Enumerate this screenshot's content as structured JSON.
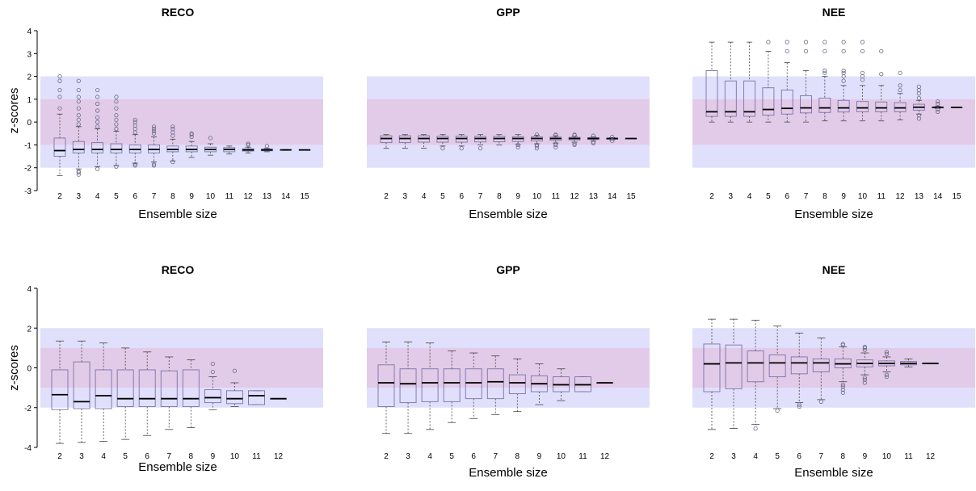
{
  "colors": {
    "outer_band": "#e0e0fc",
    "inner_band": "#e2cbe8",
    "box_stroke": "#7a72a8",
    "median": "#000000",
    "outlier": "#6a6a8a",
    "whisker": "#444444"
  },
  "bands": {
    "outer": [
      -2,
      2
    ],
    "inner": [
      -1,
      1
    ]
  },
  "chart_data": [
    {
      "type": "box",
      "title": "RECO",
      "xlabel": "Ensemble size",
      "ylabel": "z-scores",
      "ylim": [
        -3,
        4
      ],
      "yticks": [
        -3,
        -2,
        -1,
        0,
        1,
        2,
        3,
        4
      ],
      "show_yticks": true,
      "categories": [
        "2",
        "3",
        "4",
        "5",
        "6",
        "7",
        "8",
        "9",
        "10",
        "11",
        "12",
        "13",
        "14",
        "15"
      ],
      "boxes": [
        {
          "low": -2.35,
          "q1": -1.5,
          "med": -1.25,
          "q3": -0.7,
          "high": 0.35,
          "out": [
            0.6,
            1.1,
            1.4,
            1.8,
            2.0
          ]
        },
        {
          "low": -2.05,
          "q1": -1.35,
          "med": -1.2,
          "q3": -0.85,
          "high": -0.2,
          "out": [
            -2.3,
            -2.2,
            -2.15,
            -0.1,
            0.1,
            0.3,
            0.6,
            0.9,
            1.1,
            1.4,
            1.8
          ]
        },
        {
          "low": -1.95,
          "q1": -1.35,
          "med": -1.2,
          "q3": -0.9,
          "high": -0.3,
          "out": [
            -2.05,
            -0.2,
            0.0,
            0.2,
            0.5,
            0.8,
            1.1,
            1.4
          ]
        },
        {
          "low": -1.9,
          "q1": -1.35,
          "med": -1.2,
          "q3": -0.95,
          "high": -0.4,
          "out": [
            -1.95,
            -0.3,
            -0.1,
            0.1,
            0.3,
            0.6,
            0.9,
            1.1
          ]
        },
        {
          "low": -1.8,
          "q1": -1.35,
          "med": -1.2,
          "q3": -1.0,
          "high": -0.55,
          "out": [
            -1.9,
            -1.85,
            -0.45,
            -0.3,
            -0.15,
            0.0,
            0.1
          ]
        },
        {
          "low": -1.75,
          "q1": -1.35,
          "med": -1.2,
          "q3": -1.0,
          "high": -0.65,
          "out": [
            -1.9,
            -1.85,
            -0.5,
            -0.4,
            -0.3,
            -0.2
          ]
        },
        {
          "low": -1.7,
          "q1": -1.3,
          "med": -1.2,
          "q3": -1.05,
          "high": -0.75,
          "out": [
            -1.75,
            -0.6,
            -0.45,
            -0.3,
            -0.2
          ]
        },
        {
          "low": -1.55,
          "q1": -1.3,
          "med": -1.2,
          "q3": -1.05,
          "high": -0.85,
          "out": [
            -0.65,
            -0.55,
            -0.5
          ]
        },
        {
          "low": -1.45,
          "q1": -1.3,
          "med": -1.2,
          "q3": -1.1,
          "high": -0.95,
          "out": [
            -0.7
          ]
        },
        {
          "low": -1.4,
          "q1": -1.3,
          "med": -1.2,
          "q3": -1.12,
          "high": -1.05,
          "out": []
        },
        {
          "low": -1.35,
          "q1": -1.27,
          "med": -1.22,
          "q3": -1.17,
          "high": -1.1,
          "out": [
            -1.0,
            -0.95
          ]
        },
        {
          "low": -1.3,
          "q1": -1.26,
          "med": -1.22,
          "q3": -1.18,
          "high": -1.15,
          "out": [
            -1.05
          ]
        },
        {
          "low": -1.24,
          "q1": -1.23,
          "med": -1.22,
          "q3": -1.21,
          "high": -1.2,
          "out": []
        },
        {
          "low": -1.22,
          "q1": -1.22,
          "med": -1.22,
          "q3": -1.22,
          "high": -1.22,
          "out": []
        }
      ]
    },
    {
      "type": "box",
      "title": "GPP",
      "xlabel": "Ensemble size",
      "ylabel": "",
      "ylim": [
        -3,
        4
      ],
      "yticks": [
        -3,
        -2,
        -1,
        0,
        1,
        2,
        3,
        4
      ],
      "show_yticks": false,
      "categories": [
        "2",
        "3",
        "4",
        "5",
        "6",
        "7",
        "8",
        "9",
        "10",
        "11",
        "12",
        "13",
        "14",
        "15"
      ],
      "boxes": [
        {
          "low": -1.15,
          "q1": -0.9,
          "med": -0.72,
          "q3": -0.6,
          "high": -0.55,
          "out": []
        },
        {
          "low": -1.15,
          "q1": -0.9,
          "med": -0.72,
          "q3": -0.6,
          "high": -0.55,
          "out": []
        },
        {
          "low": -1.15,
          "q1": -0.88,
          "med": -0.72,
          "q3": -0.6,
          "high": -0.55,
          "out": []
        },
        {
          "low": -1.05,
          "q1": -0.88,
          "med": -0.72,
          "q3": -0.62,
          "high": -0.55,
          "out": [
            -1.15
          ]
        },
        {
          "low": -1.05,
          "q1": -0.88,
          "med": -0.72,
          "q3": -0.62,
          "high": -0.55,
          "out": [
            -1.15
          ]
        },
        {
          "low": -1.0,
          "q1": -0.87,
          "med": -0.72,
          "q3": -0.63,
          "high": -0.55,
          "out": [
            -1.15
          ]
        },
        {
          "low": -1.0,
          "q1": -0.86,
          "med": -0.72,
          "q3": -0.63,
          "high": -0.55,
          "out": []
        },
        {
          "low": -0.98,
          "q1": -0.85,
          "med": -0.72,
          "q3": -0.64,
          "high": -0.55,
          "out": [
            -1.1,
            -1.0
          ]
        },
        {
          "low": -0.95,
          "q1": -0.83,
          "med": -0.72,
          "q3": -0.65,
          "high": -0.58,
          "out": [
            -1.15,
            -1.05,
            -1.0,
            -0.55
          ]
        },
        {
          "low": -0.92,
          "q1": -0.8,
          "med": -0.72,
          "q3": -0.66,
          "high": -0.6,
          "out": [
            -1.1,
            -1.0,
            -0.95,
            -0.58,
            -0.55
          ]
        },
        {
          "low": -0.88,
          "q1": -0.78,
          "med": -0.72,
          "q3": -0.67,
          "high": -0.62,
          "out": [
            -1.0,
            -0.95,
            -0.58,
            -0.55
          ]
        },
        {
          "low": -0.82,
          "q1": -0.76,
          "med": -0.72,
          "q3": -0.68,
          "high": -0.65,
          "out": [
            -0.92,
            -0.88,
            -0.6
          ]
        },
        {
          "low": -0.78,
          "q1": -0.75,
          "med": -0.72,
          "q3": -0.7,
          "high": -0.68,
          "out": [
            -0.82,
            -0.65
          ]
        },
        {
          "low": -0.72,
          "q1": -0.72,
          "med": -0.72,
          "q3": -0.72,
          "high": -0.72,
          "out": []
        }
      ]
    },
    {
      "type": "box",
      "title": "NEE",
      "xlabel": "Ensemble size",
      "ylabel": "",
      "ylim": [
        -3,
        4
      ],
      "yticks": [
        -3,
        -2,
        -1,
        0,
        1,
        2,
        3,
        4
      ],
      "show_yticks": false,
      "categories": [
        "2",
        "3",
        "4",
        "5",
        "6",
        "7",
        "8",
        "9",
        "10",
        "11",
        "12",
        "13",
        "14",
        "15"
      ],
      "boxes": [
        {
          "low": 0.0,
          "q1": 0.25,
          "med": 0.45,
          "q3": 2.25,
          "high": 3.5,
          "out": []
        },
        {
          "low": 0.0,
          "q1": 0.25,
          "med": 0.45,
          "q3": 1.8,
          "high": 3.5,
          "out": []
        },
        {
          "low": 0.0,
          "q1": 0.25,
          "med": 0.45,
          "q3": 1.8,
          "high": 3.5,
          "out": []
        },
        {
          "low": 0.0,
          "q1": 0.3,
          "med": 0.55,
          "q3": 1.5,
          "high": 3.1,
          "out": [
            3.5
          ]
        },
        {
          "low": 0.0,
          "q1": 0.35,
          "med": 0.6,
          "q3": 1.4,
          "high": 2.6,
          "out": [
            3.1,
            3.5
          ]
        },
        {
          "low": 0.0,
          "q1": 0.4,
          "med": 0.62,
          "q3": 1.15,
          "high": 2.25,
          "out": [
            3.1,
            3.5
          ]
        },
        {
          "low": 0.05,
          "q1": 0.42,
          "med": 0.62,
          "q3": 1.05,
          "high": 2.0,
          "out": [
            2.15,
            2.25,
            3.1,
            3.5
          ]
        },
        {
          "low": 0.05,
          "q1": 0.44,
          "med": 0.62,
          "q3": 0.95,
          "high": 1.6,
          "out": [
            1.8,
            2.0,
            2.15,
            2.25,
            3.1,
            3.5
          ]
        },
        {
          "low": 0.05,
          "q1": 0.45,
          "med": 0.62,
          "q3": 0.9,
          "high": 1.6,
          "out": [
            1.85,
            2.0,
            2.15,
            3.1,
            3.5
          ]
        },
        {
          "low": 0.05,
          "q1": 0.45,
          "med": 0.62,
          "q3": 0.88,
          "high": 1.6,
          "out": [
            2.1,
            3.1
          ]
        },
        {
          "low": 0.1,
          "q1": 0.45,
          "med": 0.62,
          "q3": 0.85,
          "high": 1.25,
          "out": [
            1.4,
            1.6,
            2.15
          ]
        },
        {
          "low": 0.35,
          "q1": 0.52,
          "med": 0.65,
          "q3": 0.78,
          "high": 0.95,
          "out": [
            0.15,
            0.3,
            1.05,
            1.25,
            1.4,
            1.55
          ]
        },
        {
          "low": 0.6,
          "q1": 0.62,
          "med": 0.64,
          "q3": 0.66,
          "high": 0.7,
          "out": [
            0.45,
            0.55,
            0.8,
            0.9
          ]
        },
        {
          "low": 0.64,
          "q1": 0.64,
          "med": 0.64,
          "q3": 0.64,
          "high": 0.64,
          "out": []
        }
      ]
    },
    {
      "type": "box",
      "title": "RECO",
      "xlabel": "Ensemble size",
      "ylabel": "z-scores",
      "ylim": [
        -4,
        4
      ],
      "yticks": [
        -4,
        -2,
        0,
        2,
        4
      ],
      "show_yticks": true,
      "categories": [
        "2",
        "3",
        "4",
        "5",
        "6",
        "7",
        "8",
        "9",
        "10",
        "11",
        "12"
      ],
      "boxes": [
        {
          "low": -3.8,
          "q1": -2.1,
          "med": -1.35,
          "q3": -0.1,
          "high": 1.35,
          "out": []
        },
        {
          "low": -3.75,
          "q1": -2.05,
          "med": -1.7,
          "q3": 0.3,
          "high": 1.35,
          "out": []
        },
        {
          "low": -3.7,
          "q1": -2.05,
          "med": -1.4,
          "q3": -0.1,
          "high": 1.25,
          "out": []
        },
        {
          "low": -3.6,
          "q1": -1.95,
          "med": -1.55,
          "q3": -0.1,
          "high": 1.0,
          "out": []
        },
        {
          "low": -3.4,
          "q1": -1.95,
          "med": -1.55,
          "q3": -0.1,
          "high": 0.8,
          "out": []
        },
        {
          "low": -3.1,
          "q1": -1.95,
          "med": -1.55,
          "q3": -0.15,
          "high": 0.55,
          "out": []
        },
        {
          "low": -3.0,
          "q1": -1.95,
          "med": -1.55,
          "q3": -0.1,
          "high": 0.4,
          "out": []
        },
        {
          "low": -2.1,
          "q1": -1.75,
          "med": -1.5,
          "q3": -1.1,
          "high": -0.45,
          "out": [
            -0.2,
            0.2
          ]
        },
        {
          "low": -1.95,
          "q1": -1.8,
          "med": -1.55,
          "q3": -1.15,
          "high": -0.75,
          "out": [
            -0.15
          ]
        },
        {
          "low": -1.85,
          "q1": -1.85,
          "med": -1.4,
          "q3": -1.15,
          "high": -1.15,
          "out": []
        },
        {
          "low": -1.55,
          "q1": -1.55,
          "med": -1.55,
          "q3": -1.55,
          "high": -1.55,
          "out": []
        }
      ]
    },
    {
      "type": "box",
      "title": "GPP",
      "xlabel": "Ensemble size",
      "ylabel": "",
      "ylim": [
        -4,
        4
      ],
      "yticks": [
        -4,
        -2,
        0,
        2,
        4
      ],
      "show_yticks": false,
      "categories": [
        "2",
        "3",
        "4",
        "5",
        "6",
        "7",
        "8",
        "9",
        "10",
        "11",
        "12"
      ],
      "boxes": [
        {
          "low": -3.3,
          "q1": -1.95,
          "med": -0.75,
          "q3": 0.15,
          "high": 1.3,
          "out": []
        },
        {
          "low": -3.3,
          "q1": -1.75,
          "med": -0.8,
          "q3": -0.05,
          "high": 1.3,
          "out": []
        },
        {
          "low": -3.1,
          "q1": -1.7,
          "med": -0.75,
          "q3": -0.05,
          "high": 1.25,
          "out": []
        },
        {
          "low": -2.75,
          "q1": -1.7,
          "med": -0.75,
          "q3": -0.05,
          "high": 0.85,
          "out": []
        },
        {
          "low": -2.55,
          "q1": -1.55,
          "med": -0.75,
          "q3": -0.05,
          "high": 0.75,
          "out": []
        },
        {
          "low": -2.35,
          "q1": -1.55,
          "med": -0.7,
          "q3": -0.05,
          "high": 0.6,
          "out": []
        },
        {
          "low": -2.2,
          "q1": -1.3,
          "med": -0.75,
          "q3": -0.35,
          "high": 0.45,
          "out": []
        },
        {
          "low": -1.85,
          "q1": -1.2,
          "med": -0.8,
          "q3": -0.4,
          "high": 0.2,
          "out": []
        },
        {
          "low": -1.65,
          "q1": -1.2,
          "med": -0.85,
          "q3": -0.45,
          "high": -0.05,
          "out": []
        },
        {
          "low": -1.2,
          "q1": -1.2,
          "med": -0.85,
          "q3": -0.45,
          "high": -0.45,
          "out": []
        },
        {
          "low": -0.75,
          "q1": -0.75,
          "med": -0.75,
          "q3": -0.75,
          "high": -0.75,
          "out": []
        }
      ]
    },
    {
      "type": "box",
      "title": "NEE",
      "xlabel": "Ensemble size",
      "ylabel": "",
      "ylim": [
        -4,
        4
      ],
      "yticks": [
        -4,
        -2,
        0,
        2,
        4
      ],
      "show_yticks": false,
      "categories": [
        "2",
        "3",
        "4",
        "5",
        "6",
        "7",
        "8",
        "9",
        "10",
        "11",
        "12"
      ],
      "boxes": [
        {
          "low": -3.1,
          "q1": -1.2,
          "med": 0.2,
          "q3": 1.2,
          "high": 2.45,
          "out": []
        },
        {
          "low": -3.05,
          "q1": -1.05,
          "med": 0.25,
          "q3": 1.15,
          "high": 2.45,
          "out": []
        },
        {
          "low": -2.85,
          "q1": -0.7,
          "med": 0.25,
          "q3": 0.85,
          "high": 2.4,
          "out": [
            -3.05
          ]
        },
        {
          "low": -2.05,
          "q1": -0.45,
          "med": 0.25,
          "q3": 0.65,
          "high": 2.1,
          "out": [
            -2.15
          ]
        },
        {
          "low": -1.75,
          "q1": -0.3,
          "med": 0.25,
          "q3": 0.55,
          "high": 1.75,
          "out": [
            -1.85,
            -1.95
          ]
        },
        {
          "low": -1.6,
          "q1": -0.2,
          "med": 0.25,
          "q3": 0.45,
          "high": 1.5,
          "out": [
            -1.7
          ]
        },
        {
          "low": -0.7,
          "q1": 0.0,
          "med": 0.2,
          "q3": 0.45,
          "high": 1.05,
          "out": [
            -1.25,
            -1.1,
            -0.95,
            -0.85,
            1.15,
            1.2
          ]
        },
        {
          "low": -0.35,
          "q1": 0.05,
          "med": 0.22,
          "q3": 0.4,
          "high": 0.75,
          "out": [
            -0.75,
            -0.6,
            -0.5,
            0.9,
            1.0,
            1.05
          ]
        },
        {
          "low": -0.2,
          "q1": 0.1,
          "med": 0.22,
          "q3": 0.35,
          "high": 0.55,
          "out": [
            -0.45,
            -0.35,
            0.7,
            0.8
          ]
        },
        {
          "low": 0.05,
          "q1": 0.15,
          "med": 0.22,
          "q3": 0.32,
          "high": 0.45,
          "out": []
        },
        {
          "low": 0.22,
          "q1": 0.22,
          "med": 0.22,
          "q3": 0.22,
          "high": 0.22,
          "out": []
        }
      ]
    }
  ]
}
